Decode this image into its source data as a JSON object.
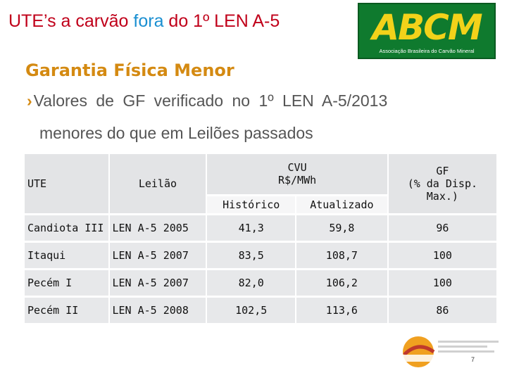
{
  "slide": {
    "title_pre": "UTE’s a carvão ",
    "title_highlight": "fora",
    "title_post": " do 1º LEN A-5",
    "subtitle": "Garantia Física Menor",
    "bullet_line1": "Valores de GF verificado no 1º LEN A-5/2013",
    "bullet_line2": "menores do que em Leilões passados",
    "page_number": "7"
  },
  "logo": {
    "mark": "ABCM",
    "tagline": "Associação Brasileira do Carvão Mineral"
  },
  "table": {
    "headers": {
      "ute": "UTE",
      "leilao": "Leilão",
      "cvu_line1": "CVU",
      "cvu_line2": "R$/MWh",
      "historico": "Histórico",
      "atualizado": "Atualizado",
      "gf_line1": "GF",
      "gf_line2": "(% da Disp.",
      "gf_line3": "Max.)"
    },
    "rows": [
      {
        "ute": "Candiota III",
        "leilao": "LEN A-5 2005",
        "historico": "41,3",
        "atualizado": "59,8",
        "gf": "96"
      },
      {
        "ute": "Itaqui",
        "leilao": "LEN A-5 2007",
        "historico": "83,5",
        "atualizado": "108,7",
        "gf": "100"
      },
      {
        "ute": "Pecém I",
        "leilao": "LEN A-5 2007",
        "historico": "82,0",
        "atualizado": "106,2",
        "gf": "100"
      },
      {
        "ute": "Pecém II",
        "leilao": "LEN A-5 2008",
        "historico": "102,5",
        "atualizado": "113,6",
        "gf": "86"
      }
    ]
  },
  "colors": {
    "title_red": "#c0001a",
    "title_highlight_blue": "#1a8fd1",
    "subtitle_orange": "#d48a12",
    "logo_green": "#0f7a2e",
    "logo_yellow": "#f2d21a",
    "table_cell_gray": "#e7e8ea"
  },
  "icons": {
    "bullet": "chevron-right-icon",
    "event_logo": "enase-logo-icon"
  }
}
